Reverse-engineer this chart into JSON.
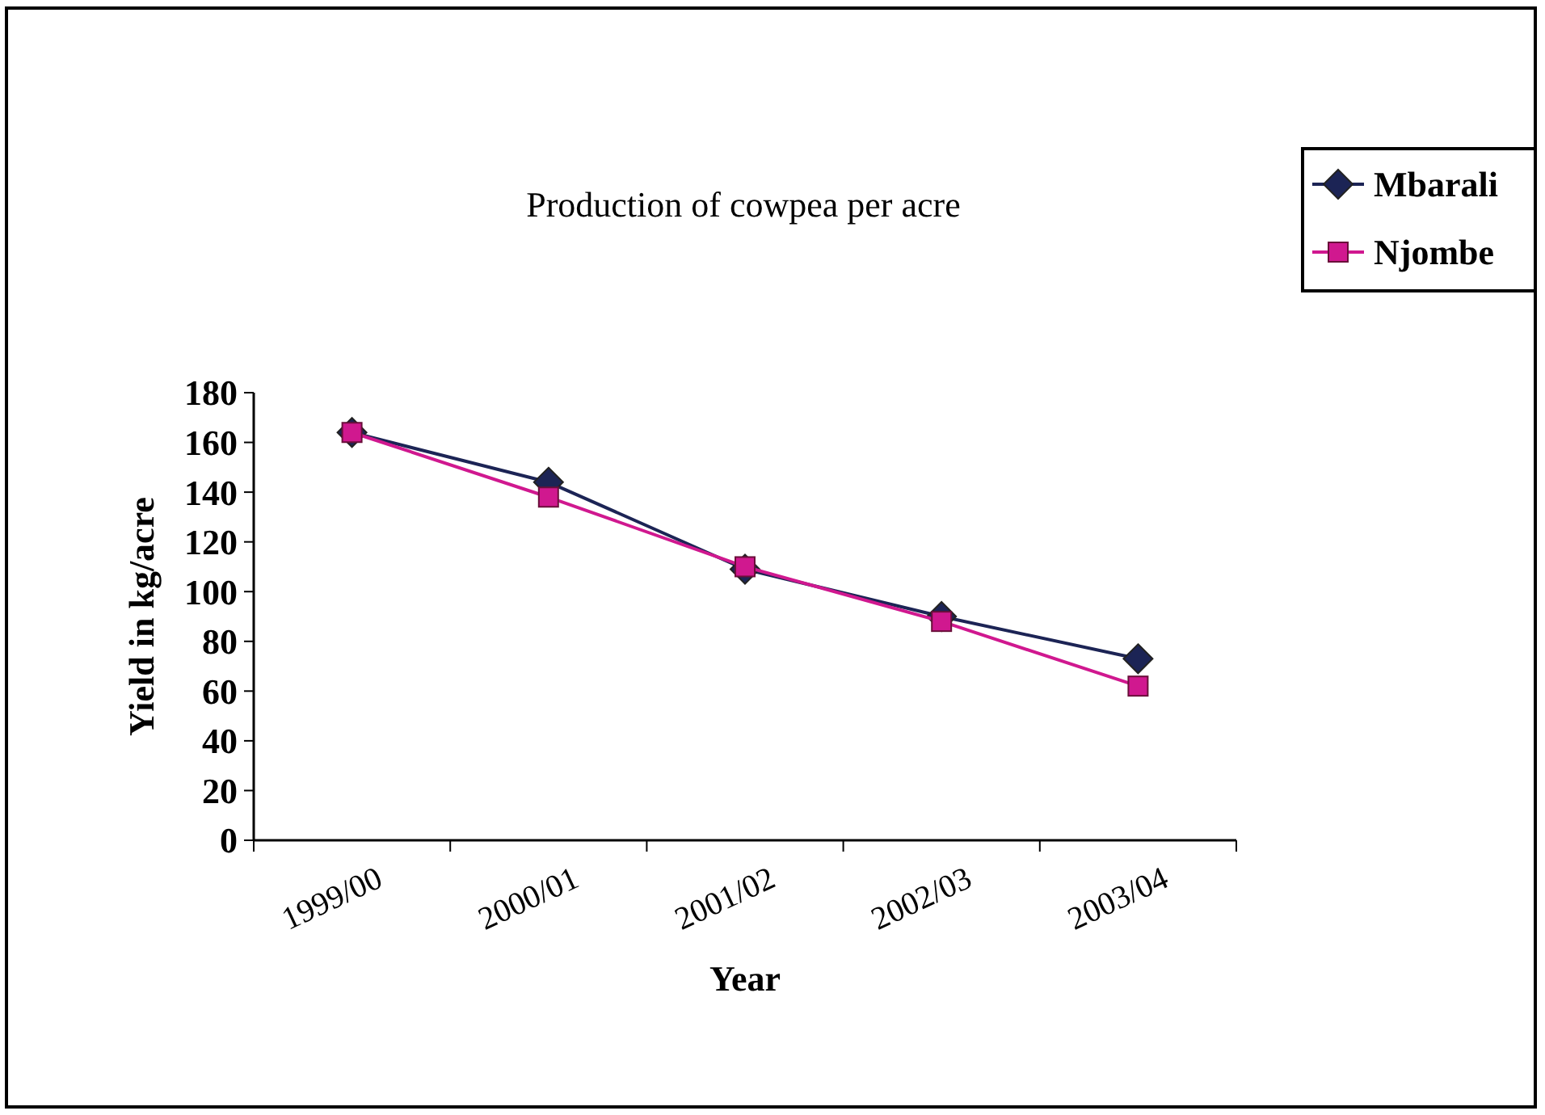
{
  "chart_data": {
    "type": "line",
    "title": "Production of cowpea per acre",
    "xlabel": "Year",
    "ylabel": "Yield in kg/acre",
    "categories": [
      "1999/00",
      "2000/01",
      "2001/02",
      "2002/03",
      "2003/04"
    ],
    "series": [
      {
        "name": "Mbarali",
        "color": "#1c2455",
        "marker": "diamond",
        "values": [
          164,
          144,
          109,
          90,
          73
        ]
      },
      {
        "name": "Njombe",
        "color": "#d0188f",
        "marker": "square",
        "values": [
          164,
          138,
          110,
          88,
          62
        ]
      }
    ],
    "ylim": [
      0,
      180
    ],
    "yticks": [
      0,
      20,
      40,
      60,
      80,
      100,
      120,
      140,
      160,
      180
    ],
    "grid": false,
    "legend": "top right"
  }
}
